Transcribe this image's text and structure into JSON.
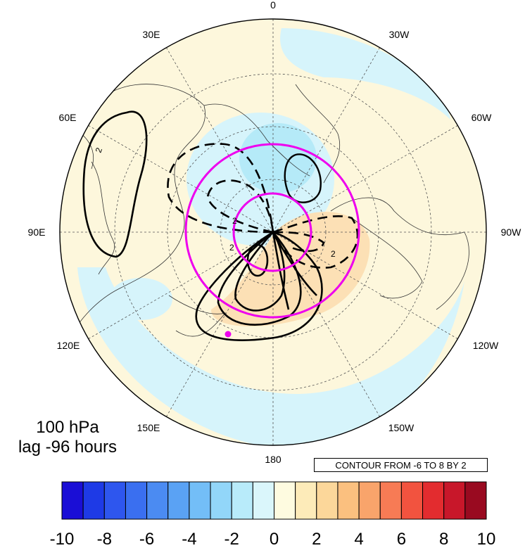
{
  "map": {
    "projection": "north-polar-stereographic",
    "longitude_labels": {
      "top": "0",
      "upper_left": "30E",
      "upper_right": "30W",
      "left_upper": "60E",
      "right_upper": "60W",
      "left": "90E",
      "right": "90W",
      "left_lower": "120E",
      "right_lower": "120W",
      "lower_left": "150E",
      "lower_right": "150W",
      "bottom": "180"
    },
    "contour_labels": [
      "2",
      "2",
      "2",
      "2"
    ],
    "colors": {
      "negative_fill": "#d6f4fb",
      "strong_negative_fill": "#b5eaf8",
      "positive_fill": "#fdf7dc",
      "strong_positive_fill": "#fce0b5",
      "highlight_circle": "#ee00ee",
      "marker": "#ee00ee"
    }
  },
  "annotation": {
    "level": "100 hPa",
    "lag": "lag -96 hours",
    "contour_info": "CONTOUR FROM -6 TO 8 BY 2"
  },
  "colorbar": {
    "colors": [
      "#1a0ed6",
      "#1e3ae6",
      "#2e56ee",
      "#3a6ff0",
      "#4b8bf2",
      "#5aa2f4",
      "#73bef7",
      "#92d6f9",
      "#b8ebfa",
      "#daf6fb",
      "#fefbe0",
      "#fdebb9",
      "#fcd79a",
      "#fbc07f",
      "#f9a46b",
      "#f77b55",
      "#f2533f",
      "#e32c2f",
      "#c8172a",
      "#990a20"
    ],
    "tick_labels": [
      "-10",
      "-8",
      "-6",
      "-4",
      "-2",
      "0",
      "2",
      "4",
      "6",
      "8",
      "10"
    ],
    "range": [
      -10,
      10
    ]
  }
}
